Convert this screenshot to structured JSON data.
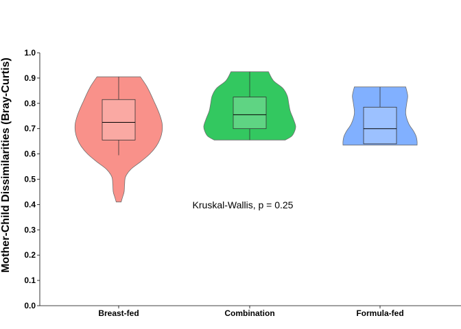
{
  "chart_data": {
    "type": "violin",
    "title": "",
    "xlabel": "",
    "ylabel": "Mother-Child Dissimilarities (Bray-Curtis)",
    "ylim": [
      0.0,
      1.0
    ],
    "yticks": [
      "0.0",
      "0.1",
      "0.2",
      "0.3",
      "0.4",
      "0.5",
      "0.6",
      "0.7",
      "0.8",
      "0.9",
      "1.0"
    ],
    "categories": [
      "Breast-fed",
      "Combination",
      "Formula-fed"
    ],
    "groups": [
      {
        "name": "Breast-fed",
        "color": "#F8766D",
        "range": [
          0.41,
          0.905
        ],
        "box": {
          "whisker_low": 0.595,
          "q1": 0.655,
          "median": 0.725,
          "q3": 0.815,
          "whisker_high": 0.905
        },
        "density": [
          [
            0.41,
            0.05
          ],
          [
            0.43,
            0.08
          ],
          [
            0.45,
            0.11
          ],
          [
            0.48,
            0.12
          ],
          [
            0.51,
            0.14
          ],
          [
            0.54,
            0.25
          ],
          [
            0.57,
            0.45
          ],
          [
            0.6,
            0.63
          ],
          [
            0.63,
            0.76
          ],
          [
            0.66,
            0.84
          ],
          [
            0.69,
            0.88
          ],
          [
            0.72,
            0.88
          ],
          [
            0.75,
            0.84
          ],
          [
            0.78,
            0.78
          ],
          [
            0.81,
            0.71
          ],
          [
            0.84,
            0.64
          ],
          [
            0.87,
            0.56
          ],
          [
            0.905,
            0.44
          ]
        ]
      },
      {
        "name": "Combination",
        "color": "#00BA38",
        "range": [
          0.655,
          0.925
        ],
        "box": {
          "whisker_low": 0.655,
          "q1": 0.7,
          "median": 0.755,
          "q3": 0.825,
          "whisker_high": 0.925
        },
        "density": [
          [
            0.655,
            0.72
          ],
          [
            0.67,
            0.85
          ],
          [
            0.69,
            0.91
          ],
          [
            0.71,
            0.93
          ],
          [
            0.74,
            0.88
          ],
          [
            0.77,
            0.82
          ],
          [
            0.8,
            0.79
          ],
          [
            0.83,
            0.76
          ],
          [
            0.86,
            0.67
          ],
          [
            0.89,
            0.48
          ],
          [
            0.925,
            0.38
          ]
        ]
      },
      {
        "name": "Formula-fed",
        "color": "#619CFF",
        "range": [
          0.635,
          0.865
        ],
        "box": {
          "whisker_low": 0.64,
          "q1": 0.64,
          "median": 0.7,
          "q3": 0.785,
          "whisker_high": 0.865
        },
        "density": [
          [
            0.635,
            0.75
          ],
          [
            0.65,
            0.75
          ],
          [
            0.67,
            0.73
          ],
          [
            0.69,
            0.68
          ],
          [
            0.72,
            0.58
          ],
          [
            0.76,
            0.52
          ],
          [
            0.8,
            0.54
          ],
          [
            0.83,
            0.56
          ],
          [
            0.865,
            0.52
          ]
        ]
      }
    ],
    "annotations": [
      {
        "text": "Kruskal-Wallis, p = 0.25",
        "x": "Combination",
        "y": 0.4
      }
    ]
  }
}
